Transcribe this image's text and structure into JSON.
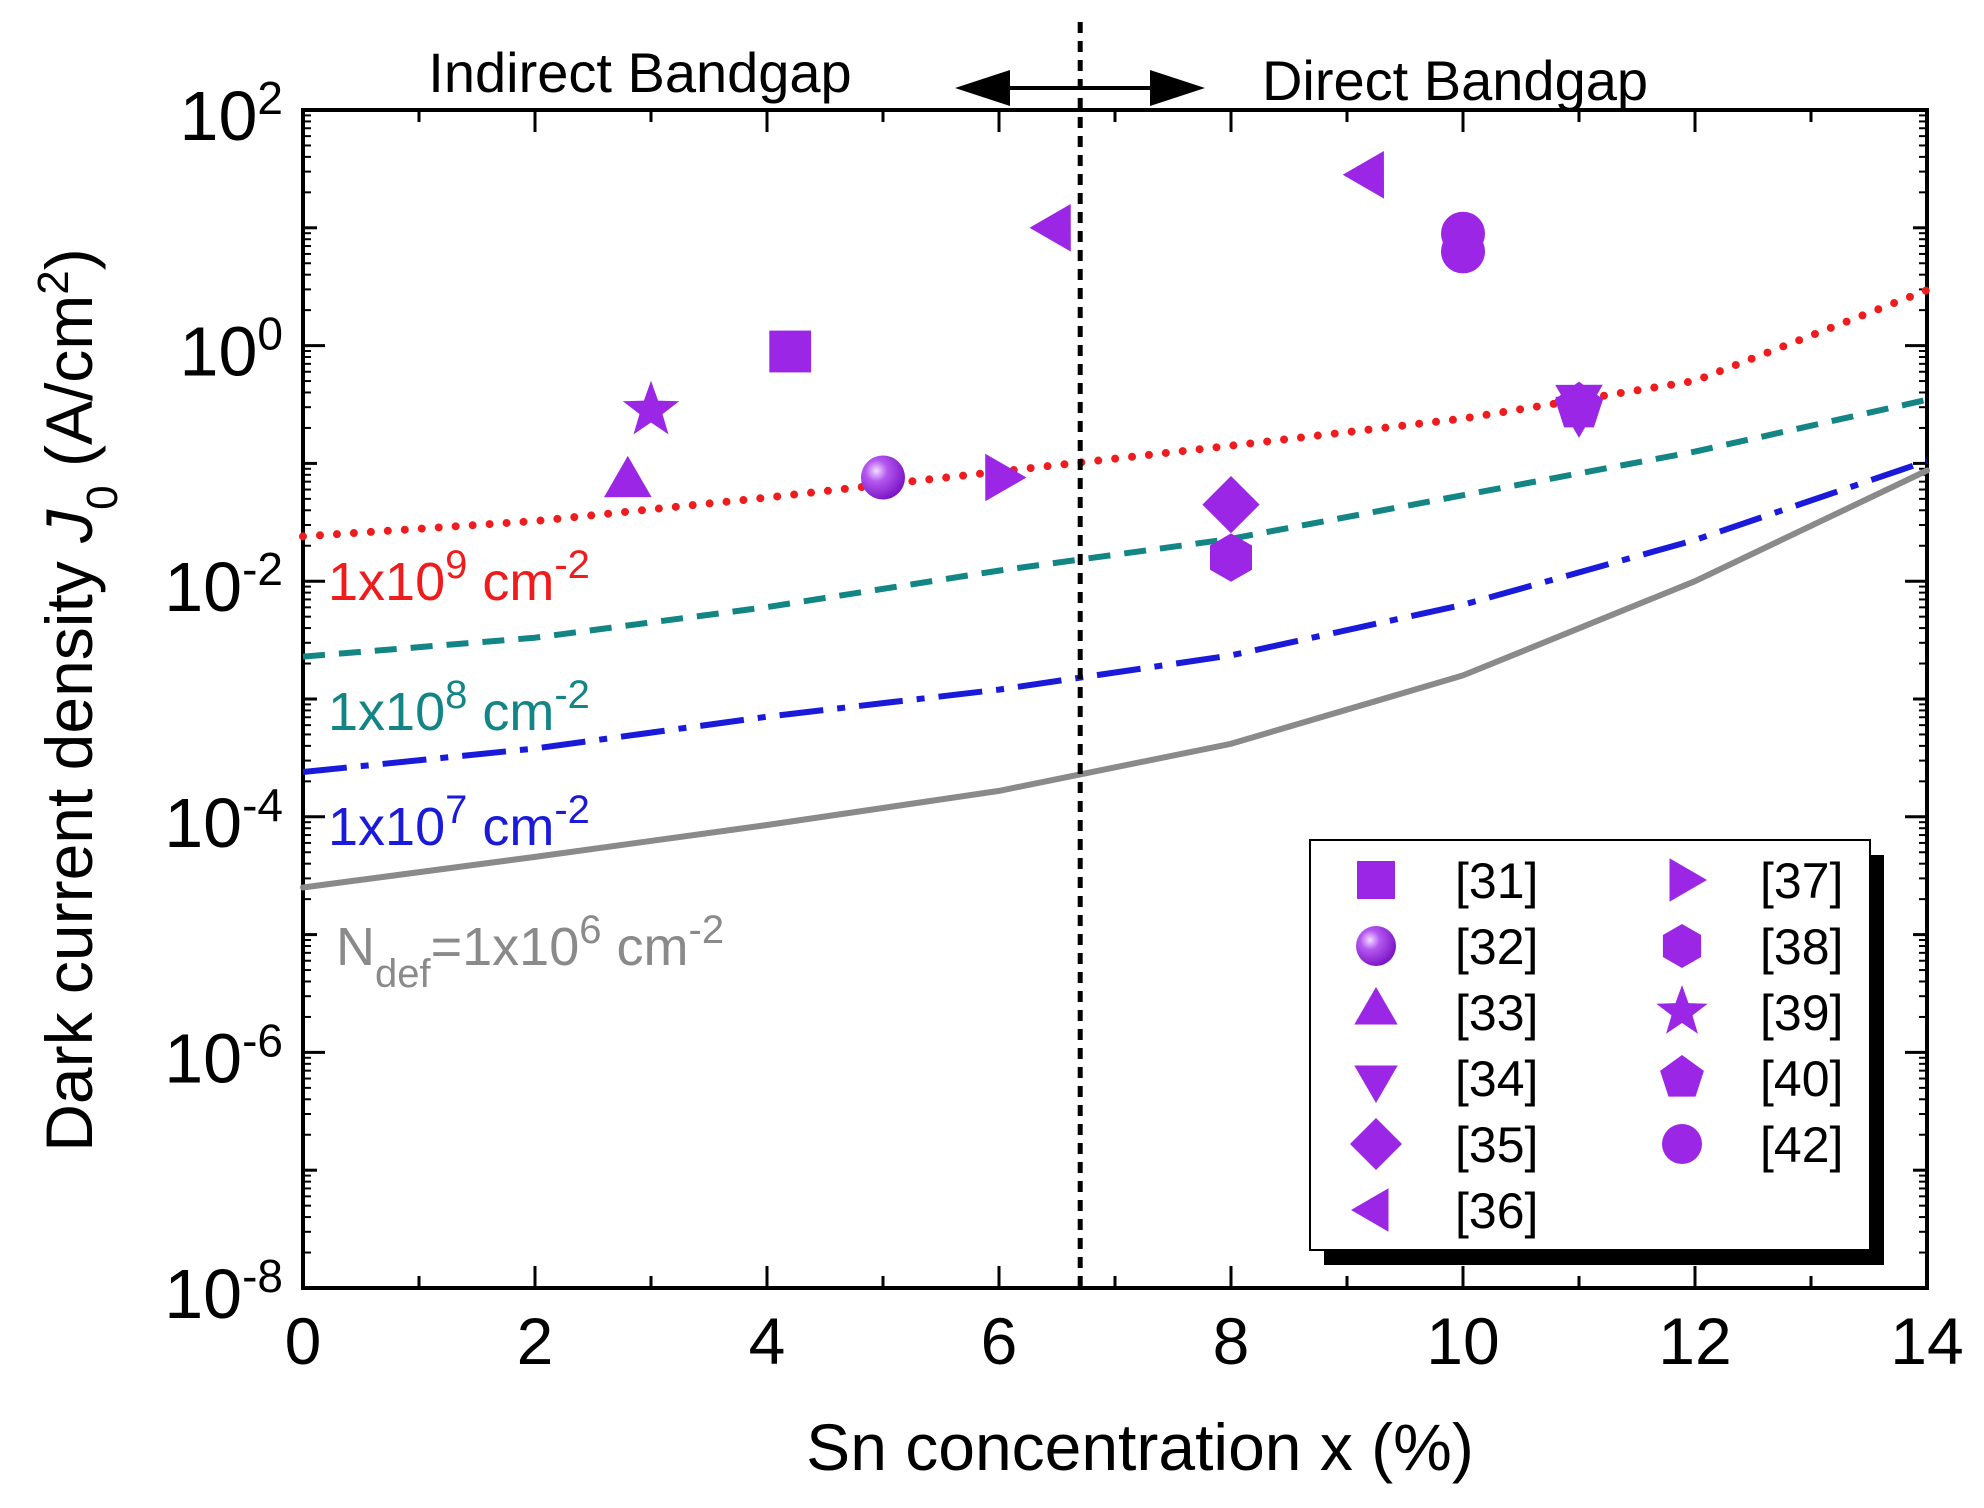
{
  "chart_data": {
    "type": "line+scatter",
    "xlabel": "Sn concentration x (%)",
    "ylabel_prefix": "Dark current density ",
    "ylabel_var": "J",
    "ylabel_sub": "0",
    "ylabel_unit": " (A/cm",
    "ylabel_unit_sup": "2",
    "ylabel_unit_end": ")",
    "xlim": [
      0,
      14
    ],
    "ylim_log10": [
      -8,
      2
    ],
    "xticks": [
      0,
      2,
      4,
      6,
      8,
      10,
      12,
      14
    ],
    "ytick_exponents": [
      2,
      0,
      -2,
      -4,
      -6,
      -8
    ],
    "ytick_base": "10",
    "transition_x": 6.7,
    "regions": {
      "left": "Indirect Bandgap",
      "right": "Direct Bandgap"
    },
    "colors": {
      "marker": "#9b26e6",
      "n1e9": "#ee1c1c",
      "n1e8": "#138585",
      "n1e7": "#1a1adb",
      "n1e6": "#8a8a8a",
      "axis": "#000000"
    },
    "curves": [
      {
        "id": "n1e9",
        "label_base": "1x10",
        "label_exp": "9",
        "label_unit": " cm",
        "label_unit_exp": "-2",
        "x": [
          0,
          2,
          4,
          6,
          8,
          10,
          12,
          14
        ],
        "log10_y": [
          -1.62,
          -1.49,
          -1.29,
          -1.07,
          -0.85,
          -0.62,
          -0.3,
          0.47
        ]
      },
      {
        "id": "n1e8",
        "label_base": "1x10",
        "label_exp": "8",
        "label_unit": " cm",
        "label_unit_exp": "-2",
        "x": [
          0,
          2,
          4,
          6,
          8,
          10,
          12,
          14
        ],
        "log10_y": [
          -2.64,
          -2.48,
          -2.22,
          -1.91,
          -1.64,
          -1.27,
          -0.9,
          -0.46
        ]
      },
      {
        "id": "n1e7",
        "label_base": "1x10",
        "label_exp": "7",
        "label_unit": " cm",
        "label_unit_exp": "-2",
        "x": [
          0,
          2,
          4,
          6,
          8,
          10,
          12,
          14
        ],
        "log10_y": [
          -3.62,
          -3.42,
          -3.15,
          -2.92,
          -2.63,
          -2.2,
          -1.65,
          -0.98
        ]
      },
      {
        "id": "n1e6",
        "label_prefix": "N",
        "label_prefix_sub": "def",
        "label_base": "=1x10",
        "label_exp": "6",
        "label_unit": " cm",
        "label_unit_exp": "-2",
        "x": [
          0,
          2,
          4,
          6,
          8,
          10,
          12,
          14
        ],
        "log10_y": [
          -4.6,
          -4.34,
          -4.07,
          -3.78,
          -3.38,
          -2.8,
          -2.0,
          -1.06
        ]
      }
    ],
    "points": [
      {
        "ref": "[31]",
        "marker": "square",
        "x": 4.2,
        "log10_y": -0.05
      },
      {
        "ref": "[32]",
        "marker": "sphere",
        "x": 5.0,
        "log10_y": -1.12
      },
      {
        "ref": "[33]",
        "marker": "triangle-up",
        "x": 2.8,
        "log10_y": -1.17
      },
      {
        "ref": "[34]",
        "marker": "triangle-down",
        "x": 11.0,
        "log10_y": -0.45
      },
      {
        "ref": "[34]",
        "marker": "triangle-down",
        "x": 11.0,
        "log10_y": -0.55
      },
      {
        "ref": "[35]",
        "marker": "diamond",
        "x": 8.0,
        "log10_y": -1.35
      },
      {
        "ref": "[36]",
        "marker": "triangle-left",
        "x": 9.2,
        "log10_y": 1.45
      },
      {
        "ref": "[36]",
        "marker": "triangle-left",
        "x": 6.5,
        "log10_y": 1.0
      },
      {
        "ref": "[37]",
        "marker": "triangle-right",
        "x": 6.0,
        "log10_y": -1.12
      },
      {
        "ref": "[38]",
        "marker": "hexagon",
        "x": 8.0,
        "log10_y": -1.8
      },
      {
        "ref": "[39]",
        "marker": "star",
        "x": 3.0,
        "log10_y": -0.55
      },
      {
        "ref": "[40]",
        "marker": "pentagon",
        "x": 11.0,
        "log10_y": -0.52
      },
      {
        "ref": "[42]",
        "marker": "circle",
        "x": 10.0,
        "log10_y": 0.95
      },
      {
        "ref": "[42]",
        "marker": "circle",
        "x": 10.0,
        "log10_y": 0.8
      }
    ],
    "legend": {
      "position": "lower-right",
      "columns": [
        [
          {
            "ref": "[31]",
            "marker": "square"
          },
          {
            "ref": "[32]",
            "marker": "sphere"
          },
          {
            "ref": "[33]",
            "marker": "triangle-up"
          },
          {
            "ref": "[34]",
            "marker": "triangle-down"
          },
          {
            "ref": "[35]",
            "marker": "diamond"
          },
          {
            "ref": "[36]",
            "marker": "triangle-left"
          }
        ],
        [
          {
            "ref": "[37]",
            "marker": "triangle-right"
          },
          {
            "ref": "[38]",
            "marker": "hexagon"
          },
          {
            "ref": "[39]",
            "marker": "star"
          },
          {
            "ref": "[40]",
            "marker": "pentagon"
          },
          {
            "ref": "[42]",
            "marker": "circle"
          }
        ]
      ]
    }
  }
}
